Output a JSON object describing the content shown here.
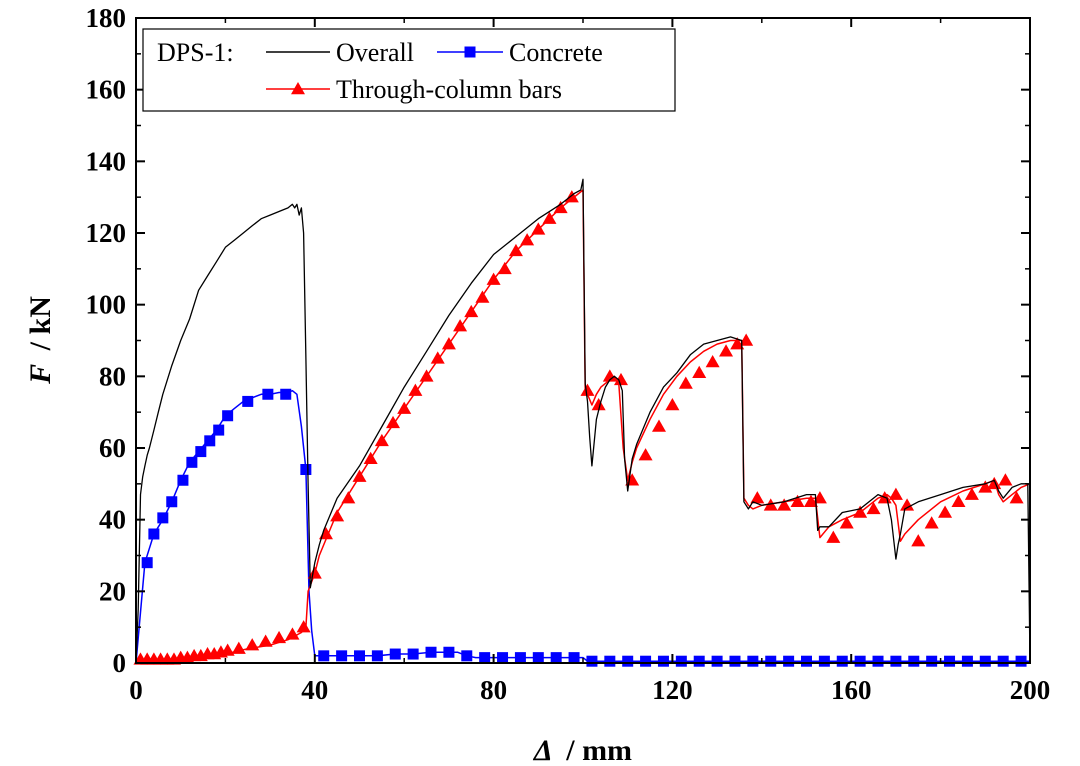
{
  "chart_data": {
    "type": "line",
    "xlabel_symbol": "Δ",
    "xlabel_unit": "/ mm",
    "ylabel_symbol": "F",
    "ylabel_unit": "/ kN",
    "xlim": [
      0,
      200
    ],
    "ylim": [
      0,
      180
    ],
    "xticks": [
      0,
      40,
      80,
      120,
      160,
      200
    ],
    "yticks": [
      0,
      20,
      40,
      60,
      80,
      100,
      120,
      140,
      160,
      180
    ],
    "grid": false,
    "legend_position": "top-left",
    "legend_prefix": "DPS-1:",
    "series": [
      {
        "name": "Overall",
        "color": "#000000",
        "marker": "none",
        "x": [
          0,
          0.5,
          1,
          1.5,
          2,
          2.5,
          3,
          4,
          5,
          6,
          8,
          10,
          12,
          14,
          16,
          18,
          20,
          22,
          24,
          26,
          28,
          30,
          32,
          34,
          35,
          35.5,
          36,
          36.5,
          37,
          37.5,
          38,
          38.5,
          39,
          40,
          41,
          42,
          45,
          50,
          55,
          60,
          65,
          70,
          75,
          80,
          85,
          90,
          95,
          98,
          99.5,
          100,
          100.5,
          101,
          101.5,
          102,
          103,
          104,
          105,
          106,
          107,
          108,
          108.8,
          109.3,
          110,
          111,
          112,
          115,
          118,
          121,
          124,
          127,
          130,
          133,
          135.5,
          136,
          137,
          138,
          140,
          145,
          150,
          152,
          152.5,
          153,
          155,
          158,
          162,
          166,
          168,
          169,
          170,
          170.5,
          171,
          172,
          175,
          180,
          185,
          190,
          192,
          193,
          194,
          196,
          198,
          199.5,
          200
        ],
        "y": [
          0,
          15,
          47,
          52,
          55,
          58,
          60,
          65,
          70,
          75,
          83,
          90,
          96,
          104,
          108,
          112,
          116,
          118,
          120,
          122,
          124,
          125,
          126,
          127,
          128,
          127,
          128,
          125,
          127,
          120,
          85,
          50,
          21,
          28,
          33,
          37,
          46,
          55,
          66,
          77,
          87,
          97,
          106,
          114,
          119,
          124,
          128,
          131,
          132,
          135,
          78,
          73,
          63,
          55,
          68,
          73,
          77,
          79,
          80,
          79,
          76,
          57,
          48,
          57,
          61,
          70,
          77,
          81,
          86,
          89,
          90,
          91,
          90,
          45,
          43,
          45,
          44,
          45,
          47,
          47,
          37,
          38,
          38,
          42,
          43,
          47,
          46,
          40,
          29,
          33,
          36,
          43,
          45,
          47,
          49,
          50,
          51,
          48,
          46,
          49,
          50,
          50,
          0
        ]
      },
      {
        "name": "Concrete",
        "color": "#0000ff",
        "marker": "square",
        "x": [
          0,
          2,
          4,
          6,
          8,
          10,
          12,
          14,
          16,
          18,
          20,
          22,
          24,
          26,
          28,
          30,
          32,
          34,
          35,
          36,
          37,
          38,
          38.7,
          39.3,
          40,
          42,
          46,
          50,
          54,
          58,
          62,
          66,
          68,
          70,
          72,
          74,
          76,
          80,
          84,
          88,
          92,
          96,
          100,
          101,
          105,
          110,
          120,
          130,
          140,
          150,
          160,
          170,
          180,
          190,
          200
        ],
        "y": [
          0,
          28,
          36,
          40,
          45,
          51,
          56,
          59,
          62,
          65,
          69,
          71,
          73,
          74,
          75,
          75,
          75.5,
          75.5,
          76,
          75,
          66,
          54,
          20,
          9,
          2,
          2,
          2,
          2,
          2,
          2.5,
          2.5,
          3,
          3,
          3,
          3,
          2,
          1.5,
          1.5,
          1.5,
          1.5,
          1.5,
          1.5,
          1.5,
          0.5,
          0.5,
          0.5,
          0.5,
          0.5,
          0.5,
          0.5,
          0.5,
          0.5,
          0.5,
          0.5,
          0.5
        ],
        "marker_x": [
          2.5,
          4,
          6,
          8,
          10.5,
          12.5,
          14.5,
          16.5,
          18.5,
          20.5,
          25,
          29.5,
          33.5,
          38,
          42,
          46,
          50,
          54,
          58,
          62,
          66,
          70,
          74,
          78,
          82,
          86,
          90,
          94,
          98,
          102,
          106,
          110,
          114,
          118,
          122,
          126,
          130,
          134,
          138,
          142,
          146,
          150,
          154,
          158,
          162,
          166,
          170,
          174,
          178,
          182,
          186,
          190,
          194,
          198
        ],
        "marker_y": [
          28,
          36,
          40.5,
          45,
          51,
          56,
          59,
          62,
          65,
          69,
          73,
          75,
          75,
          54,
          2,
          2,
          2,
          2,
          2.5,
          2.5,
          3,
          3,
          2,
          1.5,
          1.5,
          1.5,
          1.5,
          1.5,
          1.5,
          0.5,
          0.5,
          0.5,
          0.5,
          0.5,
          0.5,
          0.5,
          0.5,
          0.5,
          0.5,
          0.5,
          0.5,
          0.5,
          0.5,
          0.5,
          0.5,
          0.5,
          0.5,
          0.5,
          0.5,
          0.5,
          0.5,
          0.5,
          0.5,
          0.5
        ]
      },
      {
        "name": "Through-column bars",
        "color": "#ff0000",
        "marker": "triangle",
        "x": [
          0,
          5,
          10,
          15,
          20,
          25,
          30,
          34,
          37,
          38,
          38.5,
          40,
          41,
          43,
          45,
          50,
          55,
          60,
          65,
          70,
          75,
          80,
          85,
          90,
          95,
          98,
          100,
          100.5,
          101,
          102,
          103,
          104,
          106,
          107,
          108,
          109,
          110,
          111,
          112,
          115,
          118,
          121,
          124,
          127,
          130,
          133,
          135.5,
          136,
          137,
          138,
          140,
          145,
          150,
          152,
          153,
          155,
          158,
          162,
          166,
          168,
          169,
          170,
          171,
          172,
          175,
          180,
          185,
          190,
          192,
          193,
          194,
          196,
          198,
          200
        ],
        "y": [
          0,
          0.5,
          1,
          1.5,
          2.5,
          4,
          5,
          6.5,
          8.5,
          10,
          20,
          25,
          30,
          36,
          42,
          52,
          62,
          71,
          80,
          89,
          98,
          107,
          115,
          121,
          127,
          130,
          132,
          76,
          75,
          72,
          75,
          77,
          79,
          80,
          78,
          60,
          51,
          56,
          60,
          68,
          75,
          80,
          84,
          87,
          89,
          90,
          90,
          46,
          44,
          43,
          44,
          45,
          46,
          46,
          35,
          38,
          40,
          42,
          46,
          47,
          46,
          44,
          34,
          36,
          40,
          45,
          48,
          50,
          51,
          47,
          45,
          47,
          49,
          50
        ],
        "marker_x": [
          1,
          2.5,
          4,
          5.5,
          7,
          8.5,
          10,
          11.5,
          13,
          14.5,
          16,
          17.5,
          19,
          20.5,
          23,
          26,
          29,
          32,
          35,
          37.5,
          40,
          42.5,
          45,
          47.5,
          50,
          52.5,
          55,
          57.5,
          60,
          62.5,
          65,
          67.5,
          70,
          72.5,
          75,
          77.5,
          80,
          82.5,
          85,
          87.5,
          90,
          92.5,
          95,
          97.5,
          101,
          103.5,
          106,
          108.5,
          111,
          114,
          117,
          120,
          123,
          126,
          129,
          132,
          134.5,
          136.5,
          139,
          142,
          145,
          148,
          151,
          153,
          156,
          159,
          162,
          165,
          167.5,
          170,
          172.5,
          175,
          178,
          181,
          184,
          187,
          190,
          192,
          194.5,
          197
        ],
        "marker_y": [
          1,
          1,
          1,
          1,
          1,
          1,
          1.5,
          1.5,
          2,
          2,
          2.5,
          2.5,
          3,
          3.5,
          4,
          5,
          6,
          7,
          8,
          10,
          25,
          36,
          41,
          46,
          52,
          57,
          62,
          67,
          71,
          76,
          80,
          85,
          89,
          94,
          98,
          102,
          107,
          110,
          115,
          118,
          121,
          124,
          127,
          130,
          76,
          72,
          80,
          79,
          51,
          58,
          66,
          72,
          78,
          81,
          84,
          87,
          89,
          90,
          46,
          44,
          44,
          45,
          45,
          46,
          35,
          39,
          42,
          43,
          46,
          47,
          44,
          34,
          39,
          42,
          45,
          47,
          49,
          50,
          51,
          46
        ]
      }
    ]
  }
}
